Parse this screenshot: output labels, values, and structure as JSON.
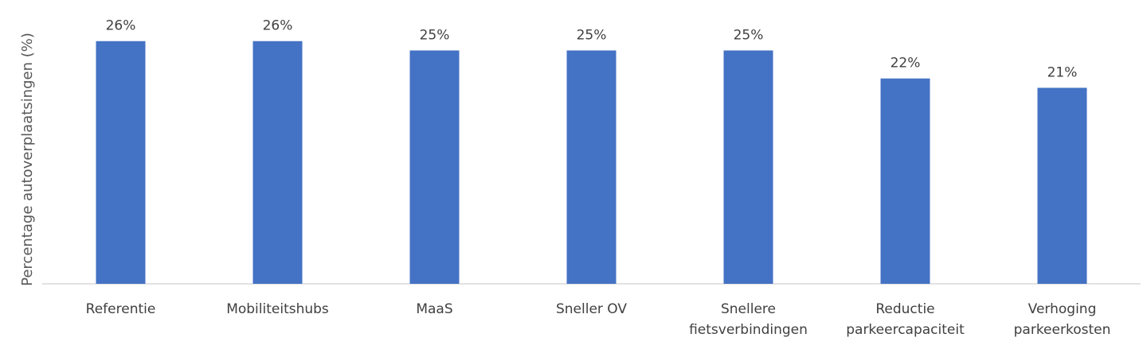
{
  "chart_data": {
    "type": "bar",
    "categories": [
      [
        "Referentie"
      ],
      [
        "Mobiliteitshubs"
      ],
      [
        "MaaS"
      ],
      [
        "Sneller OV"
      ],
      [
        "Snellere",
        "fietsverbindingen"
      ],
      [
        "Reductie",
        "parkeercapaciteit"
      ],
      [
        "Verhoging",
        "parkeerkosten"
      ]
    ],
    "values": [
      26,
      26,
      25,
      25,
      25,
      22,
      21
    ],
    "data_labels": [
      "26%",
      "26%",
      "25%",
      "25%",
      "25%",
      "22%",
      "21%"
    ],
    "title": "",
    "xlabel": "",
    "ylabel": "Percentage autoverplaatsingen (%)",
    "ylim": [
      0,
      27
    ],
    "grid": false,
    "bar_color": "#4472c4",
    "axis_color": "#d9d9d9"
  }
}
